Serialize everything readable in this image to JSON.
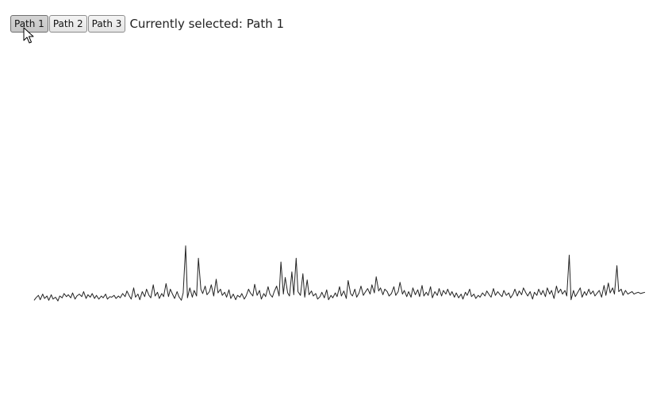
{
  "toolbar": {
    "buttons": [
      {
        "label": "Path 1",
        "selected": true
      },
      {
        "label": "Path 2",
        "selected": false
      },
      {
        "label": "Path 3",
        "selected": false
      }
    ],
    "selected_prefix": "Currently selected:",
    "selected_label": "Path 1"
  },
  "cursor": {
    "icon": "arrow-cursor-icon"
  },
  "colors": {
    "line": "#222222",
    "button_active": "#cccccc",
    "button_idle": "#e8e8e8"
  },
  "chart_data": {
    "type": "line",
    "title": "",
    "xlabel": "",
    "ylabel": "",
    "grid": false,
    "legend": "none",
    "x_range": [
      0,
      100
    ],
    "y_range": [
      0,
      100
    ],
    "series": [
      {
        "points": [
          [
            0.0,
            2
          ],
          [
            0.3,
            6
          ],
          [
            0.7,
            10
          ],
          [
            1.0,
            3
          ],
          [
            1.4,
            12
          ],
          [
            1.7,
            5
          ],
          [
            2.1,
            9
          ],
          [
            2.4,
            2
          ],
          [
            2.8,
            11
          ],
          [
            3.1,
            4
          ],
          [
            3.5,
            7
          ],
          [
            3.9,
            1
          ],
          [
            4.2,
            9
          ],
          [
            4.6,
            6
          ],
          [
            4.9,
            13
          ],
          [
            5.3,
            8
          ],
          [
            5.6,
            11
          ],
          [
            6.0,
            6
          ],
          [
            6.3,
            14
          ],
          [
            6.7,
            4
          ],
          [
            7.0,
            9
          ],
          [
            7.4,
            12
          ],
          [
            7.8,
            8
          ],
          [
            8.1,
            16
          ],
          [
            8.5,
            5
          ],
          [
            8.8,
            11
          ],
          [
            9.2,
            7
          ],
          [
            9.5,
            13
          ],
          [
            9.9,
            5
          ],
          [
            10.2,
            10
          ],
          [
            10.6,
            4
          ],
          [
            11.0,
            9
          ],
          [
            11.3,
            6
          ],
          [
            11.7,
            12
          ],
          [
            12.0,
            4
          ],
          [
            12.4,
            8
          ],
          [
            12.7,
            7
          ],
          [
            13.1,
            10
          ],
          [
            13.4,
            5
          ],
          [
            13.8,
            9
          ],
          [
            14.1,
            6
          ],
          [
            14.5,
            13
          ],
          [
            14.9,
            8
          ],
          [
            15.2,
            17
          ],
          [
            15.6,
            9
          ],
          [
            15.9,
            4
          ],
          [
            16.3,
            22
          ],
          [
            16.6,
            7
          ],
          [
            17.0,
            12
          ],
          [
            17.3,
            3
          ],
          [
            17.7,
            16
          ],
          [
            18.1,
            8
          ],
          [
            18.4,
            20
          ],
          [
            18.8,
            10
          ],
          [
            19.1,
            6
          ],
          [
            19.5,
            27
          ],
          [
            19.8,
            9
          ],
          [
            20.2,
            15
          ],
          [
            20.5,
            5
          ],
          [
            20.9,
            13
          ],
          [
            21.2,
            8
          ],
          [
            21.6,
            29
          ],
          [
            22.0,
            8
          ],
          [
            22.3,
            20
          ],
          [
            22.7,
            11
          ],
          [
            23.0,
            5
          ],
          [
            23.4,
            16
          ],
          [
            23.7,
            8
          ],
          [
            24.1,
            2
          ],
          [
            24.4,
            14
          ],
          [
            24.8,
            90
          ],
          [
            25.1,
            6
          ],
          [
            25.5,
            22
          ],
          [
            25.9,
            7
          ],
          [
            26.2,
            18
          ],
          [
            26.6,
            9
          ],
          [
            26.9,
            70
          ],
          [
            27.3,
            20
          ],
          [
            27.6,
            13
          ],
          [
            28.0,
            25
          ],
          [
            28.3,
            11
          ],
          [
            28.7,
            16
          ],
          [
            29.0,
            27
          ],
          [
            29.4,
            9
          ],
          [
            29.8,
            36
          ],
          [
            30.1,
            14
          ],
          [
            30.5,
            20
          ],
          [
            30.8,
            10
          ],
          [
            31.2,
            15
          ],
          [
            31.5,
            7
          ],
          [
            31.9,
            19
          ],
          [
            32.2,
            5
          ],
          [
            32.6,
            12
          ],
          [
            33.0,
            3
          ],
          [
            33.3,
            10
          ],
          [
            33.7,
            7
          ],
          [
            34.0,
            13
          ],
          [
            34.4,
            4
          ],
          [
            34.7,
            9
          ],
          [
            35.1,
            20
          ],
          [
            35.4,
            14
          ],
          [
            35.8,
            9
          ],
          [
            36.1,
            28
          ],
          [
            36.5,
            10
          ],
          [
            36.9,
            18
          ],
          [
            37.2,
            4
          ],
          [
            37.6,
            13
          ],
          [
            37.9,
            8
          ],
          [
            38.3,
            24
          ],
          [
            38.6,
            12
          ],
          [
            39.0,
            7
          ],
          [
            39.3,
            16
          ],
          [
            39.7,
            25
          ],
          [
            40.1,
            9
          ],
          [
            40.4,
            64
          ],
          [
            40.8,
            12
          ],
          [
            41.1,
            39
          ],
          [
            41.5,
            14
          ],
          [
            41.8,
            9
          ],
          [
            42.2,
            48
          ],
          [
            42.5,
            11
          ],
          [
            42.9,
            70
          ],
          [
            43.2,
            16
          ],
          [
            43.6,
            10
          ],
          [
            44.0,
            45
          ],
          [
            44.3,
            7
          ],
          [
            44.7,
            35
          ],
          [
            45.0,
            11
          ],
          [
            45.4,
            17
          ],
          [
            45.7,
            9
          ],
          [
            46.1,
            13
          ],
          [
            46.4,
            4
          ],
          [
            46.8,
            8
          ],
          [
            47.1,
            15
          ],
          [
            47.5,
            6
          ],
          [
            47.9,
            19
          ],
          [
            48.2,
            3
          ],
          [
            48.6,
            10
          ],
          [
            48.9,
            6
          ],
          [
            49.3,
            14
          ],
          [
            49.6,
            8
          ],
          [
            50.0,
            24
          ],
          [
            50.3,
            9
          ],
          [
            50.7,
            17
          ],
          [
            51.1,
            5
          ],
          [
            51.4,
            34
          ],
          [
            51.8,
            13
          ],
          [
            52.1,
            9
          ],
          [
            52.5,
            20
          ],
          [
            52.8,
            7
          ],
          [
            53.2,
            14
          ],
          [
            53.5,
            25
          ],
          [
            53.9,
            10
          ],
          [
            54.2,
            15
          ],
          [
            54.6,
            21
          ],
          [
            55.0,
            12
          ],
          [
            55.3,
            27
          ],
          [
            55.7,
            14
          ],
          [
            56.0,
            40
          ],
          [
            56.4,
            17
          ],
          [
            56.7,
            22
          ],
          [
            57.1,
            11
          ],
          [
            57.4,
            20
          ],
          [
            57.8,
            16
          ],
          [
            58.1,
            9
          ],
          [
            58.5,
            13
          ],
          [
            58.9,
            24
          ],
          [
            59.2,
            10
          ],
          [
            59.6,
            16
          ],
          [
            59.9,
            31
          ],
          [
            60.3,
            12
          ],
          [
            60.6,
            18
          ],
          [
            61.0,
            8
          ],
          [
            61.3,
            16
          ],
          [
            61.7,
            7
          ],
          [
            62.0,
            22
          ],
          [
            62.4,
            11
          ],
          [
            62.8,
            19
          ],
          [
            63.1,
            8
          ],
          [
            63.5,
            26
          ],
          [
            63.8,
            9
          ],
          [
            64.2,
            15
          ],
          [
            64.5,
            10
          ],
          [
            64.9,
            24
          ],
          [
            65.2,
            6
          ],
          [
            65.6,
            16
          ],
          [
            66.0,
            10
          ],
          [
            66.3,
            21
          ],
          [
            66.7,
            9
          ],
          [
            67.0,
            18
          ],
          [
            67.4,
            12
          ],
          [
            67.7,
            20
          ],
          [
            68.1,
            10
          ],
          [
            68.4,
            16
          ],
          [
            68.8,
            7
          ],
          [
            69.1,
            14
          ],
          [
            69.5,
            6
          ],
          [
            69.9,
            12
          ],
          [
            70.2,
            4
          ],
          [
            70.6,
            15
          ],
          [
            70.9,
            10
          ],
          [
            71.3,
            20
          ],
          [
            71.6,
            8
          ],
          [
            72.0,
            12
          ],
          [
            72.3,
            5
          ],
          [
            72.7,
            10
          ],
          [
            73.0,
            7
          ],
          [
            73.4,
            14
          ],
          [
            73.8,
            9
          ],
          [
            74.1,
            17
          ],
          [
            74.5,
            11
          ],
          [
            74.8,
            7
          ],
          [
            75.2,
            21
          ],
          [
            75.5,
            10
          ],
          [
            75.9,
            16
          ],
          [
            76.2,
            12
          ],
          [
            76.6,
            8
          ],
          [
            76.9,
            18
          ],
          [
            77.3,
            10
          ],
          [
            77.7,
            14
          ],
          [
            78.0,
            6
          ],
          [
            78.4,
            12
          ],
          [
            78.7,
            20
          ],
          [
            79.1,
            9
          ],
          [
            79.4,
            17
          ],
          [
            79.8,
            11
          ],
          [
            80.1,
            22
          ],
          [
            80.5,
            14
          ],
          [
            80.8,
            9
          ],
          [
            81.2,
            16
          ],
          [
            81.6,
            4
          ],
          [
            81.9,
            15
          ],
          [
            82.3,
            10
          ],
          [
            82.6,
            20
          ],
          [
            83.0,
            11
          ],
          [
            83.3,
            18
          ],
          [
            83.7,
            8
          ],
          [
            84.0,
            22
          ],
          [
            84.4,
            12
          ],
          [
            84.7,
            18
          ],
          [
            85.1,
            5
          ],
          [
            85.5,
            25
          ],
          [
            85.8,
            14
          ],
          [
            86.2,
            20
          ],
          [
            86.5,
            12
          ],
          [
            86.9,
            18
          ],
          [
            87.2,
            9
          ],
          [
            87.6,
            75
          ],
          [
            87.9,
            3
          ],
          [
            88.3,
            18
          ],
          [
            88.6,
            8
          ],
          [
            89.0,
            15
          ],
          [
            89.4,
            22
          ],
          [
            89.7,
            7
          ],
          [
            90.1,
            16
          ],
          [
            90.4,
            10
          ],
          [
            90.8,
            20
          ],
          [
            91.1,
            12
          ],
          [
            91.5,
            17
          ],
          [
            91.8,
            9
          ],
          [
            92.2,
            14
          ],
          [
            92.5,
            18
          ],
          [
            92.9,
            7
          ],
          [
            93.3,
            26
          ],
          [
            93.6,
            10
          ],
          [
            94.0,
            30
          ],
          [
            94.3,
            14
          ],
          [
            94.7,
            22
          ],
          [
            95.0,
            12
          ],
          [
            95.4,
            58
          ],
          [
            95.7,
            16
          ],
          [
            96.1,
            20
          ],
          [
            96.4,
            10
          ],
          [
            96.8,
            18
          ],
          [
            97.2,
            12
          ],
          [
            97.5,
            14
          ],
          [
            97.9,
            16
          ],
          [
            98.2,
            12
          ],
          [
            98.6,
            14
          ],
          [
            98.9,
            15
          ],
          [
            99.3,
            13
          ],
          [
            99.6,
            14
          ],
          [
            100.0,
            15
          ]
        ]
      }
    ]
  }
}
